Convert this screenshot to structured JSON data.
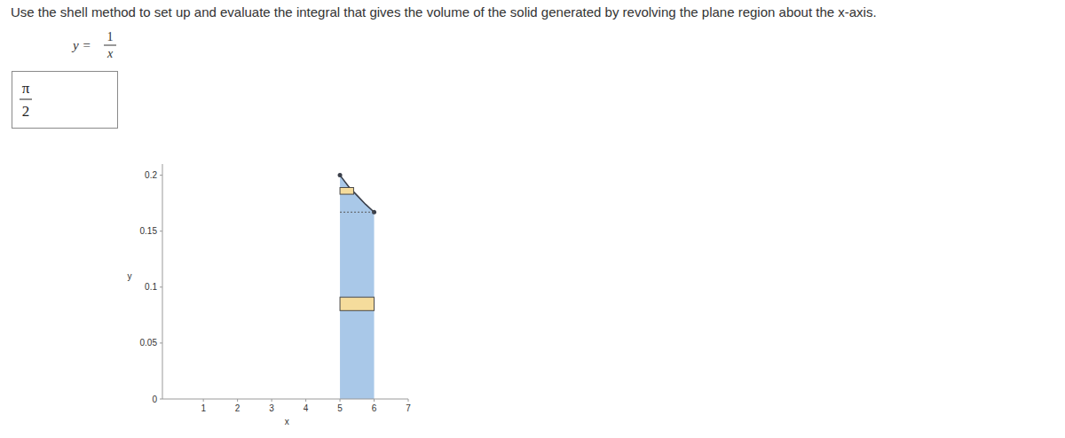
{
  "question": "Use the shell method to set up and evaluate the integral that gives the volume of the solid generated by revolving the plane region about the x-axis.",
  "equation": {
    "lhs": "y =",
    "numerator": "1",
    "denominator": "x"
  },
  "answer": {
    "numerator": "π",
    "denominator": "2"
  },
  "chart_data": {
    "type": "area",
    "x_label": "x",
    "y_label": "y",
    "xlim": [
      -0.2,
      7
    ],
    "ylim": [
      0,
      0.21
    ],
    "xticks": [
      1,
      2,
      3,
      4,
      5,
      6,
      7
    ],
    "yticks": [
      0,
      0.05,
      0.1,
      0.15,
      0.2
    ],
    "grid": false,
    "series": [
      {
        "type": "area",
        "color": "#a9c8e8",
        "x": [
          5,
          5.25,
          5.5,
          5.75,
          6
        ],
        "values": [
          0.2,
          0.19,
          0.182,
          0.174,
          0.167
        ]
      },
      {
        "type": "line",
        "color": "#3a3f4a",
        "marker": "endpoints",
        "x": [
          5,
          5.25,
          5.5,
          5.75,
          6
        ],
        "values": [
          0.2,
          0.19,
          0.182,
          0.174,
          0.167
        ]
      },
      {
        "type": "line",
        "color": "#555555",
        "line_style": "dashed",
        "x": [
          5,
          6
        ],
        "values": [
          0.167,
          0.167
        ]
      }
    ],
    "shells": [
      {
        "color": "#f5dc9c",
        "x": [
          5,
          6
        ],
        "values": [
          0.079,
          0.091
        ]
      },
      {
        "color": "#f5dc9c",
        "x": [
          5,
          5.4
        ],
        "values": [
          0.183,
          0.189
        ]
      }
    ]
  }
}
